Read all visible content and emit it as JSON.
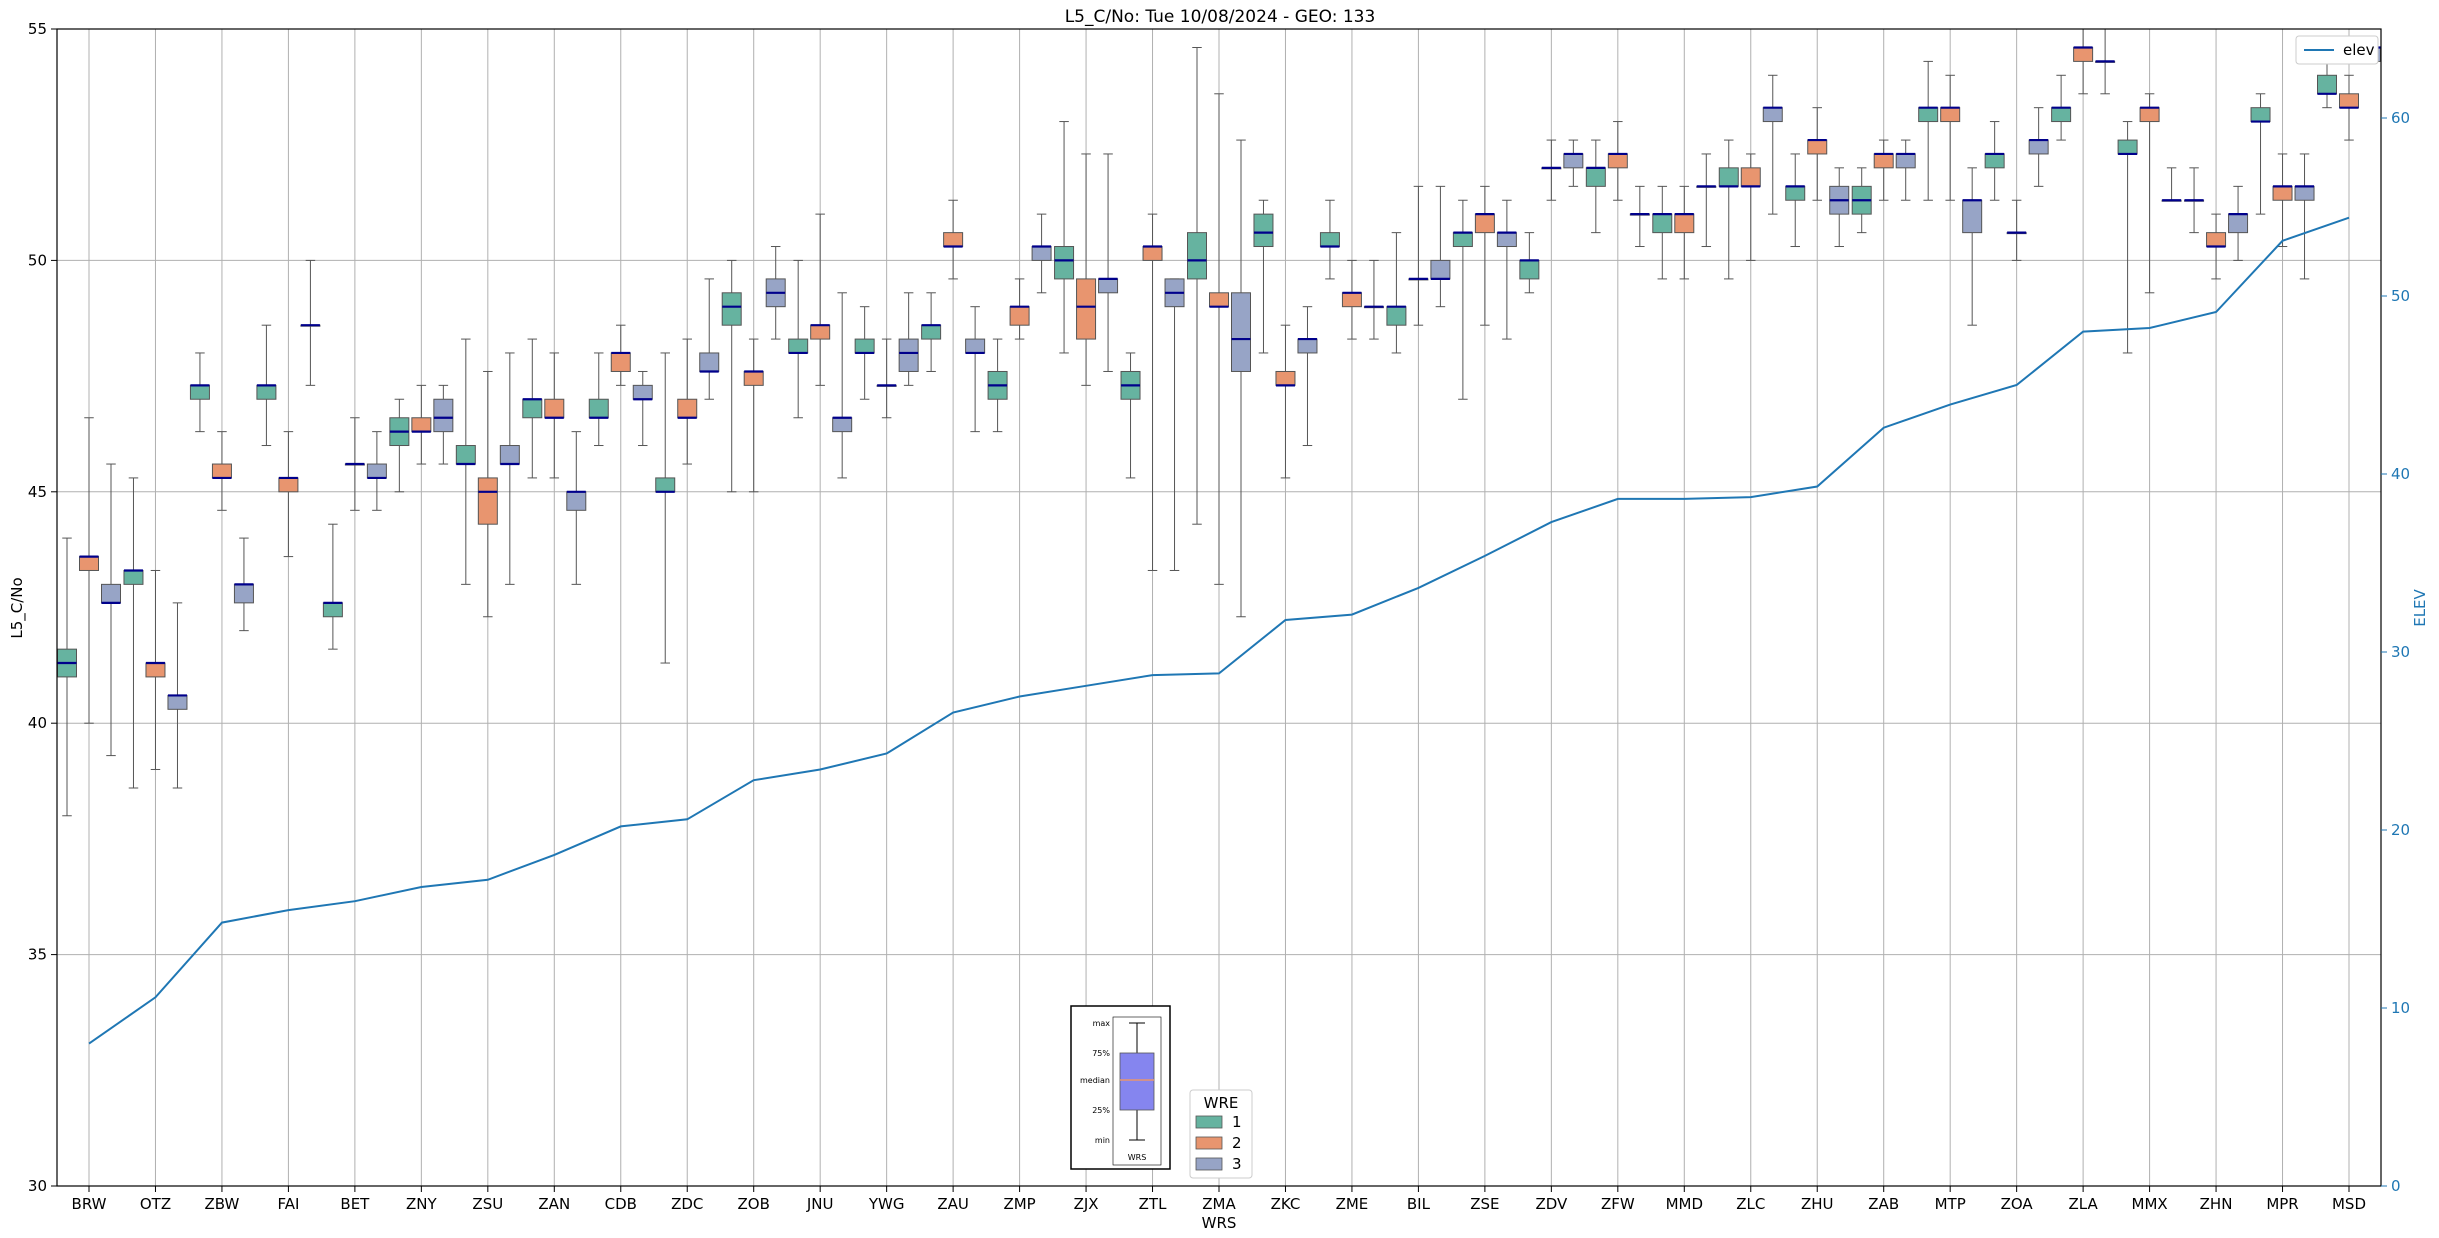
{
  "chart_data": {
    "type": "box",
    "title": "L5_C/No: Tue 10/08/2024 - GEO: 133",
    "xlabel": "WRS",
    "ylabel": "L5_C/No",
    "ylabel_right": "ELEV",
    "ylim": [
      30,
      55
    ],
    "ylim_right": [
      0,
      65
    ],
    "yticks": [
      30,
      35,
      40,
      45,
      50,
      55
    ],
    "yticks_right": [
      0,
      10,
      20,
      30,
      40,
      50,
      60
    ],
    "grid": true,
    "categories": [
      "BRW",
      "OTZ",
      "ZBW",
      "FAI",
      "BET",
      "ZNY",
      "ZSU",
      "ZAN",
      "CDB",
      "ZDC",
      "ZOB",
      "JNU",
      "YWG",
      "ZAU",
      "ZMP",
      "ZJX",
      "ZTL",
      "ZMA",
      "ZKC",
      "ZME",
      "BIL",
      "ZSE",
      "ZDV",
      "ZFW",
      "MMD",
      "ZLC",
      "ZHU",
      "ZAB",
      "MTP",
      "ZOA",
      "ZLA",
      "MMX",
      "ZHN",
      "MPR",
      "MSD"
    ],
    "legend_title": "WRE",
    "series_colors": {
      "1": "#66b3a0",
      "2": "#e8956f",
      "3": "#97a4c6"
    },
    "median_color": "#00008b",
    "elev_color": "#1f77b4",
    "series": [
      {
        "name": "1",
        "boxes": [
          [
            38.0,
            41.0,
            41.3,
            41.6,
            44.0
          ],
          [
            38.6,
            43.0,
            43.3,
            43.3,
            45.3
          ],
          [
            46.3,
            47.0,
            47.3,
            47.3,
            48.0
          ],
          [
            46.0,
            47.0,
            47.3,
            47.3,
            48.6
          ],
          [
            41.6,
            42.3,
            42.6,
            42.6,
            44.3
          ],
          [
            45.0,
            46.0,
            46.3,
            46.6,
            47.0
          ],
          [
            43.0,
            45.6,
            45.6,
            46.0,
            48.3
          ],
          [
            45.3,
            46.6,
            47.0,
            47.0,
            48.3
          ],
          [
            46.0,
            46.6,
            46.6,
            47.0,
            48.0
          ],
          [
            41.3,
            45.0,
            45.0,
            45.3,
            48.0
          ],
          [
            45.0,
            48.6,
            49.0,
            49.3,
            50.0
          ],
          [
            46.6,
            48.0,
            48.0,
            48.3,
            50.0
          ],
          [
            47.0,
            48.0,
            48.0,
            48.3,
            49.0
          ],
          [
            47.6,
            48.3,
            48.6,
            48.6,
            49.3
          ],
          [
            46.3,
            47.0,
            47.3,
            47.6,
            48.3
          ],
          [
            48.0,
            49.6,
            50.0,
            50.3,
            53.0
          ],
          [
            45.3,
            47.0,
            47.3,
            47.6,
            48.0
          ],
          [
            44.3,
            49.6,
            50.0,
            50.6,
            54.6
          ],
          [
            48.0,
            50.3,
            50.6,
            51.0,
            51.3
          ],
          [
            49.6,
            50.3,
            50.3,
            50.6,
            51.3
          ],
          [
            48.0,
            48.6,
            49.0,
            49.0,
            50.6
          ],
          [
            47.0,
            50.3,
            50.6,
            50.6,
            51.3
          ],
          [
            49.3,
            49.6,
            50.0,
            50.0,
            50.6
          ],
          [
            50.6,
            51.6,
            52.0,
            52.0,
            52.6
          ],
          [
            49.6,
            50.6,
            51.0,
            51.0,
            51.6
          ],
          [
            49.6,
            51.6,
            51.6,
            52.0,
            52.6
          ],
          [
            50.3,
            51.3,
            51.6,
            51.6,
            52.3
          ],
          [
            50.6,
            51.0,
            51.3,
            51.6,
            52.0
          ],
          [
            51.3,
            53.0,
            53.3,
            53.3,
            54.3
          ],
          [
            51.3,
            52.0,
            52.3,
            52.3,
            53.0
          ],
          [
            52.6,
            53.0,
            53.3,
            53.3,
            54.0
          ],
          [
            48.0,
            52.3,
            52.3,
            52.6,
            53.0
          ],
          [
            50.6,
            51.3,
            51.3,
            51.3,
            52.0
          ],
          [
            51.0,
            53.0,
            53.0,
            53.3,
            53.6
          ],
          [
            53.3,
            53.6,
            53.6,
            54.0,
            54.6
          ]
        ]
      },
      {
        "name": "2",
        "boxes": [
          [
            40.0,
            43.3,
            43.6,
            43.6,
            46.6
          ],
          [
            39.0,
            41.0,
            41.3,
            41.3,
            43.3
          ],
          [
            44.6,
            45.3,
            45.3,
            45.6,
            46.3
          ],
          [
            43.6,
            45.0,
            45.3,
            45.3,
            46.3
          ],
          [
            44.6,
            45.6,
            45.6,
            45.6,
            46.6
          ],
          [
            45.6,
            46.3,
            46.3,
            46.6,
            47.3
          ],
          [
            42.3,
            44.3,
            45.0,
            45.3,
            47.6
          ],
          [
            45.3,
            46.6,
            46.6,
            47.0,
            48.0
          ],
          [
            47.3,
            47.6,
            48.0,
            48.0,
            48.6
          ],
          [
            45.6,
            46.6,
            46.6,
            47.0,
            48.3
          ],
          [
            45.0,
            47.3,
            47.6,
            47.6,
            48.3
          ],
          [
            47.3,
            48.3,
            48.6,
            48.6,
            51.0
          ],
          [
            46.6,
            47.3,
            47.3,
            47.3,
            48.3
          ],
          [
            49.6,
            50.3,
            50.3,
            50.6,
            51.3
          ],
          [
            48.3,
            48.6,
            49.0,
            49.0,
            49.6
          ],
          [
            47.3,
            48.3,
            49.0,
            49.6,
            52.3
          ],
          [
            43.3,
            50.0,
            50.3,
            50.3,
            51.0
          ],
          [
            43.0,
            49.0,
            49.0,
            49.3,
            53.6
          ],
          [
            45.3,
            47.3,
            47.3,
            47.6,
            48.6
          ],
          [
            48.3,
            49.0,
            49.3,
            49.3,
            50.0
          ],
          [
            48.6,
            49.6,
            49.6,
            49.6,
            51.6
          ],
          [
            48.6,
            50.6,
            51.0,
            51.0,
            51.6
          ],
          [
            51.3,
            52.0,
            52.0,
            52.0,
            52.6
          ],
          [
            51.3,
            52.0,
            52.3,
            52.3,
            53.0
          ],
          [
            49.6,
            50.6,
            51.0,
            51.0,
            51.6
          ],
          [
            50.0,
            51.6,
            51.6,
            52.0,
            52.3
          ],
          [
            51.3,
            52.3,
            52.6,
            52.6,
            53.3
          ],
          [
            51.3,
            52.0,
            52.3,
            52.3,
            52.6
          ],
          [
            51.3,
            53.0,
            53.3,
            53.3,
            54.0
          ],
          [
            50.0,
            50.6,
            50.6,
            50.6,
            51.3
          ],
          [
            53.6,
            54.3,
            54.6,
            54.6,
            55.0
          ],
          [
            49.3,
            53.0,
            53.3,
            53.3,
            53.6
          ],
          [
            49.6,
            50.3,
            50.3,
            50.6,
            51.0
          ],
          [
            50.3,
            51.3,
            51.6,
            51.6,
            52.3
          ],
          [
            52.6,
            53.3,
            53.3,
            53.6,
            54.0
          ]
        ]
      },
      {
        "name": "3",
        "boxes": [
          [
            39.3,
            42.6,
            42.6,
            43.0,
            45.6
          ],
          [
            38.6,
            40.3,
            40.6,
            40.6,
            42.6
          ],
          [
            42.0,
            42.6,
            43.0,
            43.0,
            44.0
          ],
          [
            47.3,
            48.6,
            48.6,
            48.6,
            50.0
          ],
          [
            44.6,
            45.3,
            45.3,
            45.6,
            46.3
          ],
          [
            45.6,
            46.3,
            46.6,
            47.0,
            47.3
          ],
          [
            43.0,
            45.6,
            45.6,
            46.0,
            48.0
          ],
          [
            43.0,
            44.6,
            45.0,
            45.0,
            46.3
          ],
          [
            46.0,
            47.0,
            47.0,
            47.3,
            47.6
          ],
          [
            47.0,
            47.6,
            47.6,
            48.0,
            49.6
          ],
          [
            48.3,
            49.0,
            49.3,
            49.6,
            50.3
          ],
          [
            45.3,
            46.3,
            46.6,
            46.6,
            49.3
          ],
          [
            47.3,
            47.6,
            48.0,
            48.3,
            49.3
          ],
          [
            46.3,
            48.0,
            48.0,
            48.3,
            49.0
          ],
          [
            49.3,
            50.0,
            50.3,
            50.3,
            51.0
          ],
          [
            47.6,
            49.3,
            49.6,
            49.6,
            52.3
          ],
          [
            43.3,
            49.0,
            49.3,
            49.6,
            49.6
          ],
          [
            42.3,
            47.6,
            48.3,
            49.3,
            52.6
          ],
          [
            46.0,
            48.0,
            48.3,
            48.3,
            49.0
          ],
          [
            48.3,
            49.0,
            49.0,
            49.0,
            50.0
          ],
          [
            49.0,
            49.6,
            49.6,
            50.0,
            51.6
          ],
          [
            48.3,
            50.3,
            50.6,
            50.6,
            51.3
          ],
          [
            51.6,
            52.0,
            52.3,
            52.3,
            52.6
          ],
          [
            50.3,
            51.0,
            51.0,
            51.0,
            51.6
          ],
          [
            50.3,
            51.6,
            51.6,
            51.6,
            52.3
          ],
          [
            51.0,
            53.0,
            53.3,
            53.3,
            54.0
          ],
          [
            50.3,
            51.0,
            51.3,
            51.6,
            52.0
          ],
          [
            51.3,
            52.0,
            52.3,
            52.3,
            52.6
          ],
          [
            48.6,
            50.6,
            51.3,
            51.3,
            52.0
          ],
          [
            51.6,
            52.3,
            52.6,
            52.6,
            53.3
          ],
          [
            53.6,
            54.3,
            54.3,
            54.3,
            55.0
          ],
          [
            51.3,
            51.3,
            51.3,
            51.3,
            52.0
          ],
          [
            50.0,
            50.6,
            51.0,
            51.0,
            51.6
          ],
          [
            49.6,
            51.3,
            51.6,
            51.6,
            52.3
          ],
          [
            54.3,
            54.3,
            54.6,
            54.6,
            54.6
          ]
        ]
      }
    ],
    "elev": {
      "name": "elev",
      "values": [
        8.0,
        10.6,
        14.8,
        15.5,
        16.0,
        16.8,
        17.2,
        18.6,
        20.2,
        20.6,
        22.8,
        23.4,
        24.3,
        26.6,
        27.5,
        28.1,
        28.7,
        28.8,
        31.8,
        32.1,
        33.6,
        35.4,
        37.3,
        38.6,
        38.6,
        38.7,
        39.3,
        42.6,
        43.9,
        45.0,
        48.0,
        48.2,
        49.1,
        53.1,
        54.4
      ]
    },
    "inset_key": {
      "labels": [
        "max",
        "75%",
        "median",
        "25%",
        "min"
      ],
      "xlabel": "WRS"
    }
  }
}
